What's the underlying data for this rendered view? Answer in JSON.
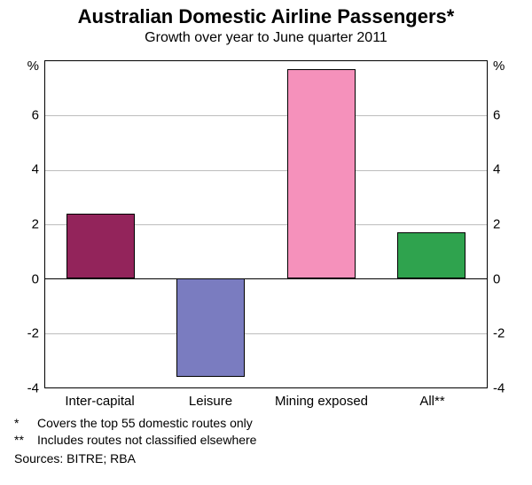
{
  "chart": {
    "type": "bar",
    "title": "Australian Domestic Airline Passengers*",
    "title_fontsize": 22,
    "subtitle": "Growth over year to June quarter 2011",
    "subtitle_fontsize": 16,
    "categories": [
      "Inter-capital",
      "Leisure",
      "Mining exposed",
      "All**"
    ],
    "values": [
      2.4,
      -3.6,
      7.7,
      1.7
    ],
    "bar_colors": [
      "#93245b",
      "#7a7cc0",
      "#f591bb",
      "#2fa34e"
    ],
    "bar_width": 0.62,
    "y_unit": "%",
    "ylim": [
      -4,
      8
    ],
    "yticks": [
      -4,
      -2,
      0,
      2,
      4,
      6
    ],
    "background_color": "#ffffff",
    "grid_color": "#bdbdbd",
    "axis_color": "#000000",
    "label_fontsize": 15,
    "footnotes": [
      {
        "mark": "*",
        "text": "Covers the top 55 domestic routes only"
      },
      {
        "mark": "**",
        "text": "Includes routes not classified elsewhere"
      }
    ],
    "sources": "Sources: BITRE; RBA"
  }
}
